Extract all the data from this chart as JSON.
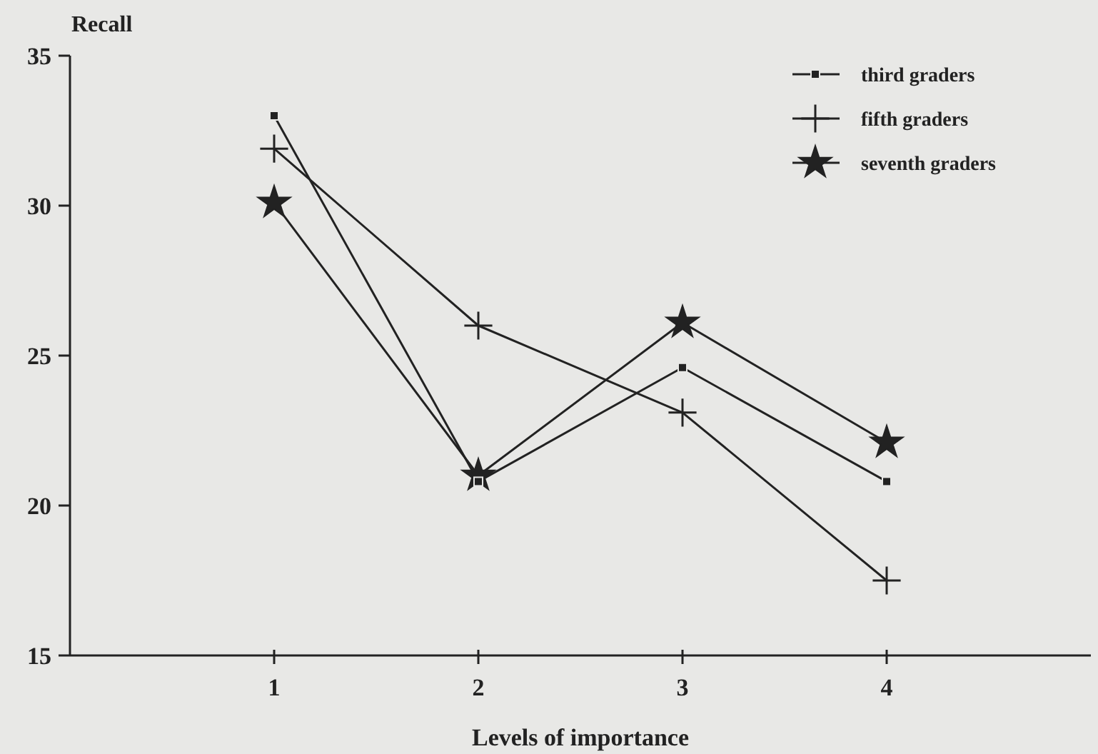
{
  "chart_data": {
    "type": "line",
    "xlabel": "Levels of importance",
    "ylabel": "Recall",
    "x": [
      1,
      2,
      3,
      4
    ],
    "xlim": [
      0,
      5
    ],
    "xticks": [
      1,
      2,
      3,
      4
    ],
    "ylim": [
      15,
      35
    ],
    "yticks": [
      15,
      20,
      25,
      30,
      35
    ],
    "series": [
      {
        "name": "third graders",
        "color": "#222222",
        "marker": "square",
        "values": [
          33,
          20.8,
          24.6,
          20.8
        ]
      },
      {
        "name": "fifth graders",
        "color": "#222222",
        "marker": "cross",
        "values": [
          31.9,
          26,
          23.1,
          17.5
        ]
      },
      {
        "name": "seventh graders",
        "color": "#222222",
        "marker": "star",
        "values": [
          30.1,
          21,
          26.1,
          22.1
        ]
      }
    ],
    "legend": "top right",
    "grid": false,
    "line_style": "solid"
  }
}
